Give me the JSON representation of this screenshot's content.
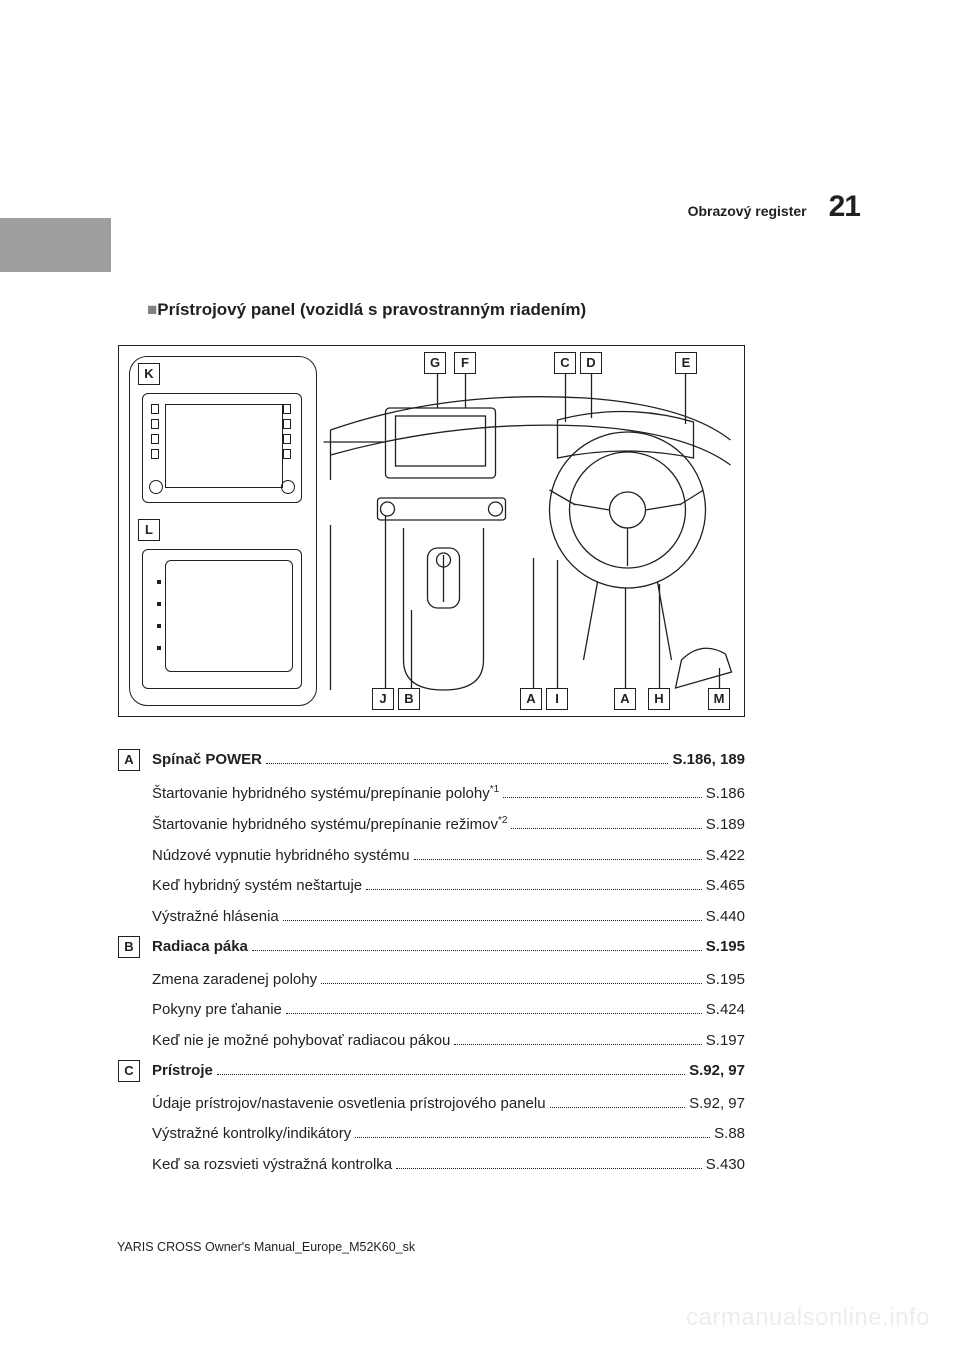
{
  "header": {
    "section_label": "Obrazový register",
    "page_number": "21"
  },
  "section": {
    "title": "Prístrojový panel (vozidlá s pravostranným riadením)"
  },
  "diagram": {
    "callouts_top": [
      "G",
      "F",
      "C",
      "D",
      "E"
    ],
    "callouts_bottom": [
      "J",
      "B",
      "A",
      "I",
      "A",
      "H",
      "M"
    ],
    "left_panel_top": "K",
    "left_panel_bottom": "L"
  },
  "items": [
    {
      "letter": "A",
      "heading": {
        "label": "Spínač POWER",
        "page": "S.186, 189"
      },
      "subs": [
        {
          "label": "Štartovanie hybridného systému/prepínanie polohy",
          "sup": "*1",
          "page": "S.186"
        },
        {
          "label": "Štartovanie hybridného systému/prepínanie režimov",
          "sup": "*2",
          "page": "S.189"
        },
        {
          "label": "Núdzové vypnutie hybridného systému",
          "page": "S.422"
        },
        {
          "label": "Keď hybridný systém neštartuje",
          "page": "S.465"
        },
        {
          "label": "Výstražné hlásenia",
          "page": "S.440"
        }
      ]
    },
    {
      "letter": "B",
      "heading": {
        "label": "Radiaca páka",
        "page": "S.195"
      },
      "subs": [
        {
          "label": "Zmena zaradenej polohy",
          "page": "S.195"
        },
        {
          "label": "Pokyny pre ťahanie",
          "page": "S.424"
        },
        {
          "label": "Keď nie je možné pohybovať radiacou pákou",
          "page": "S.197"
        }
      ]
    },
    {
      "letter": "C",
      "heading": {
        "label": "Prístroje",
        "page": "S.92, 97"
      },
      "subs": [
        {
          "label": "Údaje prístrojov/nastavenie osvetlenia prístrojového panelu",
          "page": "S.92, 97"
        },
        {
          "label": "Výstražné kontrolky/indikátory",
          "page": "S.88"
        },
        {
          "label": "Keď sa rozsvieti výstražná kontrolka",
          "page": "S.430"
        }
      ]
    }
  ],
  "footer": "YARIS CROSS Owner's Manual_Europe_M52K60_sk",
  "watermark": "carmanualsonline.info",
  "colors": {
    "grey_bar": "#9d9e9e",
    "square_bullet": "#808285",
    "watermark": "#ededed"
  }
}
